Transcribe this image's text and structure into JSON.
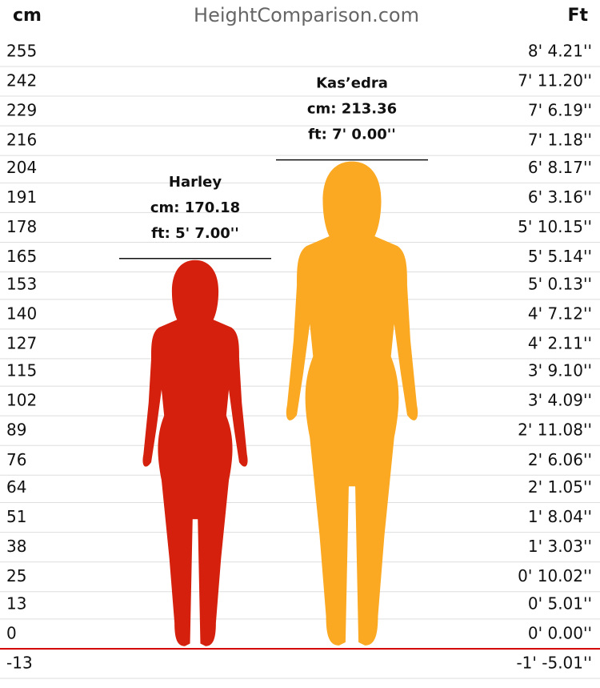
{
  "chart_data": {
    "type": "height",
    "title": "HeightComparison.com",
    "y_label": "cm",
    "y2_label": "Ft",
    "ylim": [
      -17.2,
      284.1
    ],
    "yticks": [
      255,
      242,
      229,
      216,
      204,
      191,
      178,
      165,
      153,
      140,
      127,
      115,
      102,
      89,
      76,
      64,
      51,
      38,
      25,
      13,
      0,
      -13
    ],
    "y2ticks": [
      {
        "value": 100.21,
        "label": "8' 4.21''"
      },
      {
        "value": 95.2,
        "label": "7' 11.20''"
      },
      {
        "value": 90.19,
        "label": "7' 6.19''"
      },
      {
        "value": 85.18,
        "label": "7' 1.18''"
      },
      {
        "value": 80.17,
        "label": "6' 8.17''"
      },
      {
        "value": 75.16,
        "label": "6' 3.16''"
      },
      {
        "value": 70.15,
        "label": "5' 10.15''"
      },
      {
        "value": 65.14,
        "label": "5' 5.14''"
      },
      {
        "value": 60.13,
        "label": "5' 0.13''"
      },
      {
        "value": 55.12,
        "label": "4' 7.12''"
      },
      {
        "value": 50.11,
        "label": "4' 2.11''"
      },
      {
        "value": 45.1,
        "label": "3' 9.10''"
      },
      {
        "value": 40.09,
        "label": "3' 4.09''"
      },
      {
        "value": 35.08,
        "label": "2' 11.08''"
      },
      {
        "value": 30.06,
        "label": "2' 6.06''"
      },
      {
        "value": 25.05,
        "label": "2' 1.05''"
      },
      {
        "value": 20.04,
        "label": "1' 8.04''"
      },
      {
        "value": 15.03,
        "label": "1' 3.03''"
      },
      {
        "value": 10.02,
        "label": "0' 10.02''"
      },
      {
        "value": 5.01,
        "label": "0' 5.01''"
      },
      {
        "value": 0,
        "label": "0' 0.00''"
      },
      {
        "value": -17.01,
        "label": "-1' -5.01''"
      }
    ],
    "series": [
      {
        "name": "Harley",
        "color": "#d4200c",
        "values": [
          170.18
        ],
        "value_labels": [
          "cm: 170.18"
        ],
        "ft_labels": [
          "ft: 5' 7.00''"
        ]
      },
      {
        "name": "Kas’edra",
        "color": "#fba922",
        "values": [
          213.36
        ],
        "value_labels": [
          "cm: 213.36"
        ],
        "ft_labels": [
          "ft: 7' 0.00''"
        ]
      }
    ],
    "baseline_color": "#d40000",
    "grid": true
  }
}
